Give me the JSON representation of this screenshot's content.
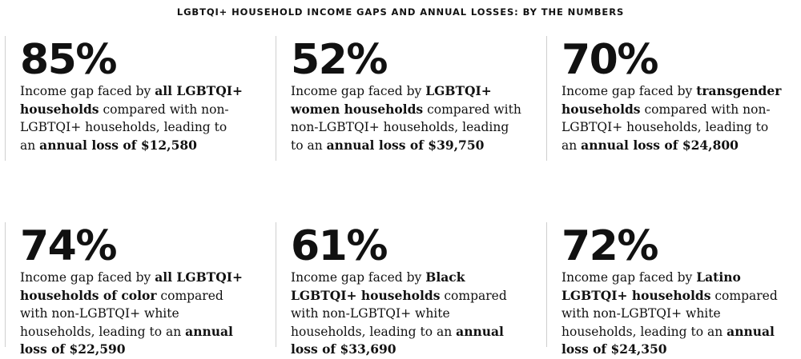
{
  "title": "LGBTQI+ HOUSEHOLD INCOME GAPS AND ANNUAL LOSSES: BY THE NUMBERS",
  "cards": [
    {
      "stat": "85%",
      "parts": [
        {
          "t": "Income gap faced by ",
          "b": false
        },
        {
          "t": "all LGBTQI+ households",
          "b": true
        },
        {
          "t": " compared with non-LGBTQI+ households, leading to an ",
          "b": false
        },
        {
          "t": "annual loss of $12,580",
          "b": true
        }
      ]
    },
    {
      "stat": "52%",
      "parts": [
        {
          "t": "Income gap faced by ",
          "b": false
        },
        {
          "t": "LGBTQI+ women households",
          "b": true
        },
        {
          "t": " compared with non-LGBTQI+ households, leading to an ",
          "b": false
        },
        {
          "t": "annual loss of $39,750",
          "b": true
        }
      ]
    },
    {
      "stat": "70%",
      "parts": [
        {
          "t": "Income gap faced by ",
          "b": false
        },
        {
          "t": "transgender households",
          "b": true
        },
        {
          "t": " compared with non-LGBTQI+ households, leading to an ",
          "b": false
        },
        {
          "t": "annual loss of $24,800",
          "b": true
        }
      ]
    },
    {
      "stat": "74%",
      "parts": [
        {
          "t": "Income gap faced by ",
          "b": false
        },
        {
          "t": "all LGBTQI+ households of color",
          "b": true
        },
        {
          "t": " compared with non-LGBTQI+ white households, leading to an ",
          "b": false
        },
        {
          "t": "annual loss of $22,590",
          "b": true
        }
      ]
    },
    {
      "stat": "61%",
      "parts": [
        {
          "t": "Income gap faced by ",
          "b": false
        },
        {
          "t": "Black LGBTQI+ households",
          "b": true
        },
        {
          "t": " compared with non-LGBTQI+ white households, leading to an ",
          "b": false
        },
        {
          "t": "annual loss of $33,690",
          "b": true
        }
      ]
    },
    {
      "stat": "72%",
      "parts": [
        {
          "t": "Income gap faced by ",
          "b": false
        },
        {
          "t": "Latino LGBTQI+ households",
          "b": true
        },
        {
          "t": " compared with non-LGBTQI+ white households, leading to an ",
          "b": false
        },
        {
          "t": "annual loss of $24,350",
          "b": true
        }
      ]
    }
  ]
}
